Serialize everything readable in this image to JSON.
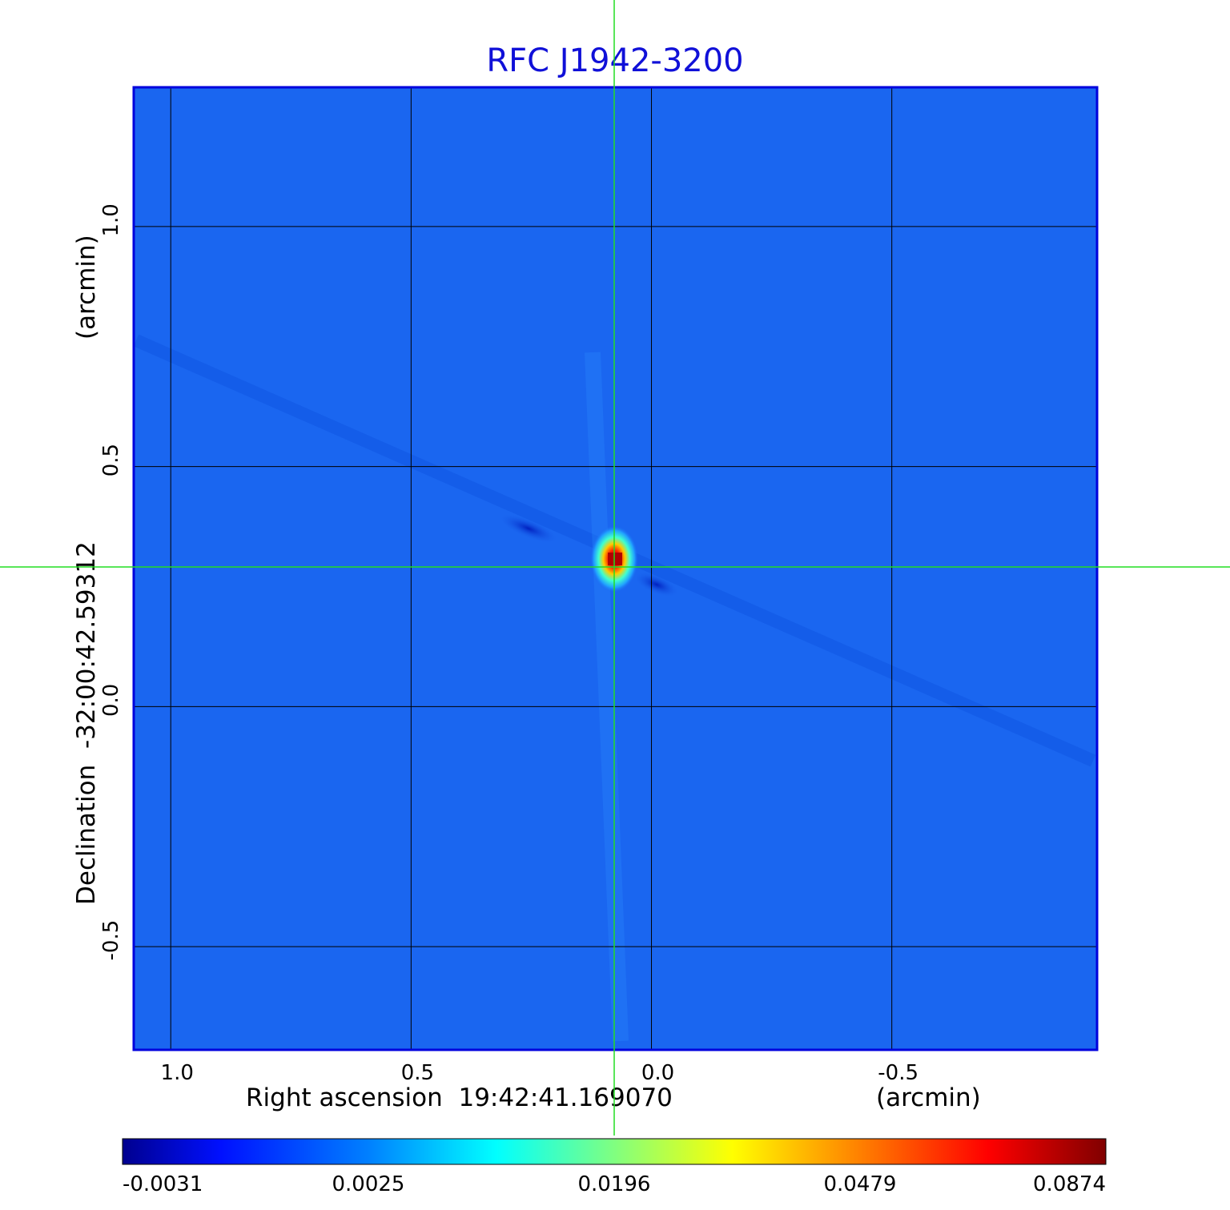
{
  "chart_data": {
    "type": "heatmap",
    "title": "RFC J1942-3200",
    "xlabel": "Right ascension  19:42:41.169070",
    "xunit": "(arcmin)",
    "ylabel": "Declination  -32:00:42.59312",
    "yunit": "(arcmin)",
    "xlim": [
      1.077,
      -0.927
    ],
    "ylim": [
      -0.715,
      1.29
    ],
    "x_ticks": [
      1.0,
      0.5,
      0.0,
      -0.5
    ],
    "x_tick_labels": [
      "1.0",
      "0.5",
      "0.0",
      "-0.5"
    ],
    "y_ticks": [
      1.0,
      0.5,
      0.0,
      -0.5
    ],
    "y_tick_labels": [
      "1.0",
      "0.5",
      "0.0",
      "-0.5"
    ],
    "grid": true,
    "crosshair": {
      "x": 0.077,
      "y": 0.29
    },
    "peak": {
      "x": 0.077,
      "y": 0.3,
      "value": 0.0874
    },
    "colorbar": {
      "ticks": [
        -0.0031,
        0.0025,
        0.0196,
        0.0479,
        0.0874
      ],
      "tick_labels": [
        "-0.0031",
        "0.0025",
        "0.0196",
        "0.0479",
        "0.0874"
      ],
      "colormap": "jet"
    },
    "colors": {
      "title": "#1010d8",
      "background_map": "#1a66f0",
      "grid": "#000000",
      "crosshair": "#22dd22",
      "frame": "#0000dd"
    }
  }
}
